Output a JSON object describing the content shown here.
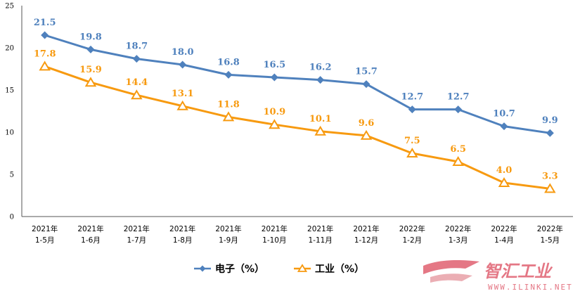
{
  "chart_data": {
    "type": "line",
    "title": "",
    "xlabel": "",
    "ylabel": "",
    "ylim": [
      0,
      25
    ],
    "yticks": [
      0,
      5,
      10,
      15,
      20,
      25
    ],
    "grid": false,
    "legend_placement": "bottom-center",
    "categories": [
      [
        "2021年",
        "1-5月"
      ],
      [
        "2021年",
        "1-6月"
      ],
      [
        "2021年",
        "1-7月"
      ],
      [
        "2021年",
        "1-8月"
      ],
      [
        "2021年",
        "1-9月"
      ],
      [
        "2021年",
        "1-10月"
      ],
      [
        "2021年",
        "1-11月"
      ],
      [
        "2021年",
        "1-12月"
      ],
      [
        "2022年",
        "1-2月"
      ],
      [
        "2022年",
        "1-3月"
      ],
      [
        "2022年",
        "1-4月"
      ],
      [
        "2022年",
        "1-5月"
      ]
    ],
    "series": [
      {
        "name": "电子（%）",
        "color": "#4f81bd",
        "marker": "diamond",
        "values": [
          21.5,
          19.8,
          18.7,
          18.0,
          16.8,
          16.5,
          16.2,
          15.7,
          12.7,
          12.7,
          10.7,
          9.9
        ],
        "labels": [
          "21.5",
          "19.8",
          "18.7",
          "18.0",
          "16.8",
          "16.5",
          "16.2",
          "15.7",
          "12.7",
          "12.7",
          "10.7",
          "9.9"
        ]
      },
      {
        "name": "工业（%）",
        "color": "#f79a10",
        "marker": "triangle",
        "values": [
          17.8,
          15.9,
          14.4,
          13.1,
          11.8,
          10.9,
          10.1,
          9.6,
          7.5,
          6.5,
          4.0,
          3.3
        ],
        "labels": [
          "17.8",
          "15.9",
          "14.4",
          "13.1",
          "11.8",
          "10.9",
          "10.1",
          "9.6",
          "7.5",
          "6.5",
          "4.0",
          "3.3"
        ]
      }
    ]
  },
  "watermark": {
    "text": "智汇工业",
    "subtext": "WWW.ILINKI.NET",
    "color": "#e06070"
  }
}
